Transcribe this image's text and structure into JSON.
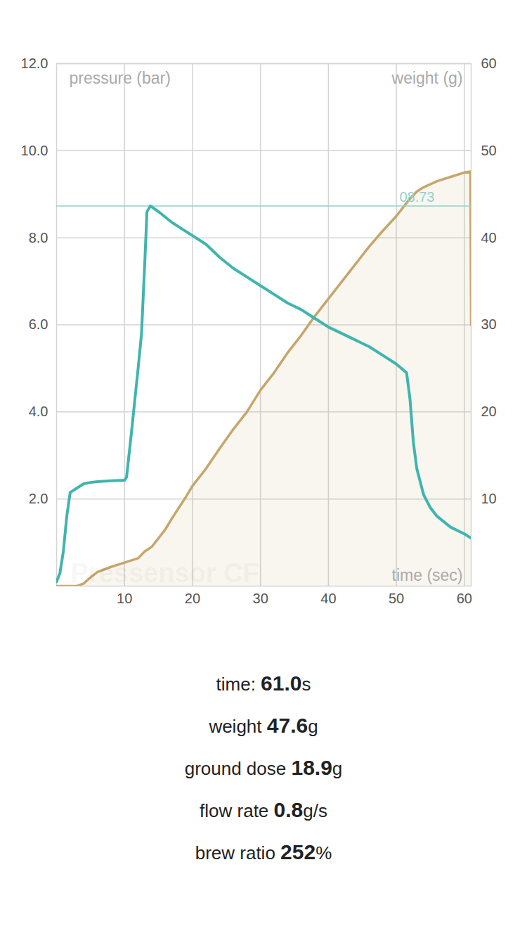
{
  "chart_data": {
    "type": "line",
    "xlabel": "time (sec)",
    "ylabel": "pressure (bar)",
    "y2label": "weight (g)",
    "watermark": "Pressensor CF",
    "xlim": [
      0,
      61
    ],
    "xticks": [
      10,
      20,
      30,
      40,
      50,
      60
    ],
    "ylim": [
      0,
      12
    ],
    "yticks": [
      2,
      4,
      6,
      8,
      10,
      12
    ],
    "y2lim": [
      0,
      60
    ],
    "y2ticks": [
      10,
      20,
      30,
      40,
      50,
      60
    ],
    "grid": true,
    "reference_line": {
      "value": 8.73,
      "label": "08.73",
      "color": "#8fd3ce"
    },
    "series": [
      {
        "type": "line",
        "axis": "y",
        "color": "#3fb5ae",
        "x": [
          0,
          0.5,
          1,
          1.5,
          2,
          3,
          4,
          5,
          6,
          8,
          10,
          10.3,
          11,
          12,
          12.5,
          13,
          13.3,
          13.8,
          15,
          17,
          18,
          20,
          22,
          24,
          26,
          28,
          30,
          32,
          34,
          36,
          38,
          40,
          42,
          44,
          46,
          48,
          50,
          51.5,
          52,
          52.5,
          53,
          54,
          55,
          56,
          58,
          60,
          61
        ],
        "values": [
          0.1,
          0.3,
          0.8,
          1.6,
          2.15,
          2.25,
          2.35,
          2.38,
          2.4,
          2.42,
          2.43,
          2.5,
          3.5,
          5.0,
          5.8,
          7.5,
          8.6,
          8.73,
          8.6,
          8.35,
          8.25,
          8.05,
          7.85,
          7.55,
          7.3,
          7.1,
          6.9,
          6.7,
          6.5,
          6.35,
          6.15,
          5.95,
          5.8,
          5.65,
          5.5,
          5.3,
          5.1,
          4.9,
          4.3,
          3.3,
          2.7,
          2.1,
          1.8,
          1.6,
          1.35,
          1.2,
          1.1
        ]
      },
      {
        "type": "area",
        "axis": "y2",
        "color": "#c6a66a",
        "x": [
          0,
          3,
          4,
          5,
          6,
          8,
          10,
          12,
          13,
          14,
          15,
          16,
          17,
          18,
          19,
          20,
          22,
          24,
          26,
          28,
          30,
          32,
          34,
          36,
          38,
          40,
          42,
          44,
          46,
          48,
          50,
          51,
          52,
          53,
          54,
          56,
          58,
          60,
          60.9,
          61
        ],
        "values": [
          0,
          0,
          0.3,
          1,
          1.6,
          2.2,
          2.7,
          3.2,
          4,
          4.5,
          5.5,
          6.5,
          7.8,
          9,
          10.2,
          11.5,
          13.5,
          15.8,
          18,
          20,
          22.5,
          24.5,
          26.8,
          28.8,
          31,
          33,
          35,
          37,
          39,
          40.8,
          42.5,
          43.5,
          44.5,
          45.3,
          45.8,
          46.5,
          47,
          47.5,
          47.6,
          30
        ]
      }
    ]
  },
  "summary": [
    {
      "label": "time:",
      "value": "61.0",
      "unit": "s"
    },
    {
      "label": "weight",
      "value": "47.6",
      "unit": "g"
    },
    {
      "label": "ground dose",
      "value": "18.9",
      "unit": "g"
    },
    {
      "label": "flow rate",
      "value": "0.8",
      "unit": "g/s"
    },
    {
      "label": "brew ratio",
      "value": "252",
      "unit": "%"
    }
  ]
}
